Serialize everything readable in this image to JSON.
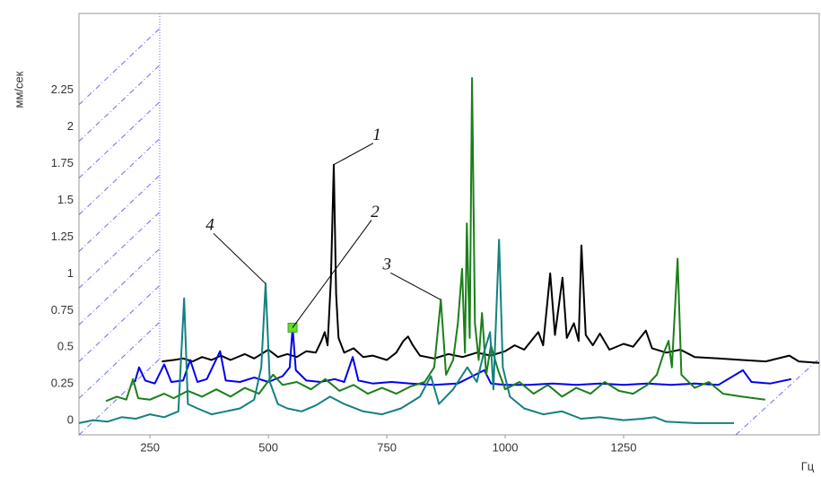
{
  "chart_data": {
    "type": "line",
    "y_label": "мм/сек",
    "x_label": "Гц",
    "xlim": [
      100,
      1663
    ],
    "ylim": [
      -0.06,
      2.81
    ],
    "xticks": [
      250,
      500,
      750,
      1000,
      1250
    ],
    "yticks": [
      0,
      0.25,
      0.5,
      0.75,
      1,
      1.25,
      1.5,
      1.75,
      2,
      2.25
    ],
    "series": [
      {
        "color": "#000000",
        "x": [
          275,
          300,
          320,
          340,
          360,
          380,
          400,
          420,
          450,
          470,
          500,
          520,
          540,
          560,
          580,
          600,
          612,
          619,
          625,
          632,
          638,
          643,
          648,
          660,
          680,
          700,
          720,
          750,
          770,
          785,
          795,
          805,
          820,
          850,
          880,
          910,
          940,
          970,
          1000,
          1020,
          1040,
          1060,
          1070,
          1080,
          1095,
          1105,
          1121,
          1130,
          1145,
          1155,
          1161,
          1170,
          1185,
          1200,
          1220,
          1250,
          1270,
          1297,
          1310,
          1340,
          1370,
          1400,
          1450,
          1500,
          1550,
          1600,
          1620,
          1663
        ],
        "values": [
          0.44,
          0.45,
          0.46,
          0.44,
          0.47,
          0.45,
          0.48,
          0.45,
          0.49,
          0.46,
          0.52,
          0.47,
          0.49,
          0.47,
          0.51,
          0.5,
          0.58,
          0.64,
          0.55,
          1.0,
          1.78,
          0.9,
          0.6,
          0.5,
          0.53,
          0.47,
          0.48,
          0.45,
          0.5,
          0.58,
          0.61,
          0.55,
          0.48,
          0.46,
          0.49,
          0.47,
          0.5,
          0.48,
          0.51,
          0.55,
          0.52,
          0.6,
          0.64,
          0.55,
          1.04,
          0.62,
          1.01,
          0.6,
          0.7,
          0.58,
          1.23,
          0.62,
          0.55,
          0.63,
          0.52,
          0.56,
          0.54,
          0.65,
          0.53,
          0.5,
          0.52,
          0.47,
          0.46,
          0.45,
          0.44,
          0.48,
          0.44,
          0.43
        ]
      },
      {
        "color": "#0000ee",
        "x": [
          218,
          227,
          240,
          260,
          280,
          295,
          320,
          335,
          350,
          370,
          398,
          410,
          440,
          470,
          500,
          530,
          545,
          551,
          558,
          580,
          610,
          640,
          660,
          678,
          690,
          720,
          760,
          800,
          850,
          900,
          956,
          970,
          1000,
          1050,
          1100,
          1150,
          1200,
          1250,
          1300,
          1350,
          1400,
          1450,
          1502,
          1520,
          1560,
          1604
        ],
        "values": [
          0.3,
          0.4,
          0.31,
          0.29,
          0.42,
          0.3,
          0.31,
          0.45,
          0.3,
          0.32,
          0.51,
          0.31,
          0.3,
          0.33,
          0.3,
          0.34,
          0.4,
          0.67,
          0.38,
          0.31,
          0.3,
          0.32,
          0.3,
          0.47,
          0.31,
          0.29,
          0.3,
          0.29,
          0.28,
          0.29,
          0.38,
          0.29,
          0.28,
          0.28,
          0.29,
          0.28,
          0.29,
          0.28,
          0.29,
          0.28,
          0.29,
          0.28,
          0.38,
          0.3,
          0.29,
          0.32
        ]
      },
      {
        "color": "#1a7f1a",
        "x": [
          157,
          180,
          200,
          214,
          225,
          250,
          280,
          300,
          330,
          360,
          390,
          420,
          450,
          480,
          510,
          530,
          560,
          590,
          620,
          650,
          680,
          710,
          740,
          770,
          800,
          830,
          850,
          864,
          875,
          890,
          900,
          909,
          915,
          919,
          925,
          930,
          936,
          944,
          951,
          960,
          970,
          985,
          1000,
          1030,
          1060,
          1090,
          1120,
          1150,
          1180,
          1210,
          1240,
          1270,
          1300,
          1320,
          1335,
          1345,
          1352,
          1364,
          1372,
          1400,
          1430,
          1460,
          1500,
          1549
        ],
        "values": [
          0.17,
          0.2,
          0.18,
          0.32,
          0.19,
          0.18,
          0.22,
          0.19,
          0.24,
          0.2,
          0.25,
          0.2,
          0.26,
          0.22,
          0.35,
          0.28,
          0.3,
          0.25,
          0.32,
          0.24,
          0.28,
          0.22,
          0.26,
          0.22,
          0.27,
          0.3,
          0.4,
          0.86,
          0.35,
          0.45,
          0.7,
          1.07,
          0.5,
          1.38,
          0.6,
          2.37,
          0.7,
          0.45,
          0.77,
          0.35,
          0.55,
          0.38,
          0.25,
          0.3,
          0.22,
          0.28,
          0.2,
          0.26,
          0.22,
          0.3,
          0.24,
          0.22,
          0.28,
          0.35,
          0.5,
          0.58,
          0.4,
          1.14,
          0.35,
          0.26,
          0.3,
          0.22,
          0.2,
          0.18
        ]
      },
      {
        "color": "#148080",
        "x": [
          100,
          130,
          160,
          190,
          220,
          250,
          280,
          310,
          322,
          330,
          350,
          380,
          410,
          440,
          470,
          485,
          494,
          503,
          520,
          540,
          570,
          600,
          630,
          660,
          700,
          740,
          780,
          820,
          843,
          860,
          890,
          920,
          940,
          955,
          968,
          975,
          987,
          995,
          1010,
          1040,
          1080,
          1120,
          1160,
          1200,
          1250,
          1290,
          1316,
          1340,
          1400,
          1483
        ],
        "values": [
          0.02,
          0.04,
          0.03,
          0.06,
          0.05,
          0.08,
          0.06,
          0.1,
          0.87,
          0.15,
          0.12,
          0.08,
          0.1,
          0.12,
          0.18,
          0.4,
          0.97,
          0.3,
          0.15,
          0.12,
          0.1,
          0.14,
          0.2,
          0.15,
          0.1,
          0.08,
          0.12,
          0.2,
          0.34,
          0.15,
          0.25,
          0.4,
          0.3,
          0.5,
          0.64,
          0.25,
          1.27,
          0.4,
          0.2,
          0.12,
          0.08,
          0.1,
          0.05,
          0.06,
          0.04,
          0.05,
          0.06,
          0.03,
          0.02,
          0.02
        ]
      }
    ],
    "marker": {
      "series": 1,
      "index": 17,
      "color": "#66dd22"
    },
    "annotations": [
      {
        "text": "1",
        "series": 0,
        "index": 20
      },
      {
        "text": "2",
        "series": 1,
        "index": 17
      },
      {
        "text": "3",
        "series": 2,
        "index": 27
      },
      {
        "text": "4",
        "series": 3,
        "index": 16
      }
    ]
  }
}
